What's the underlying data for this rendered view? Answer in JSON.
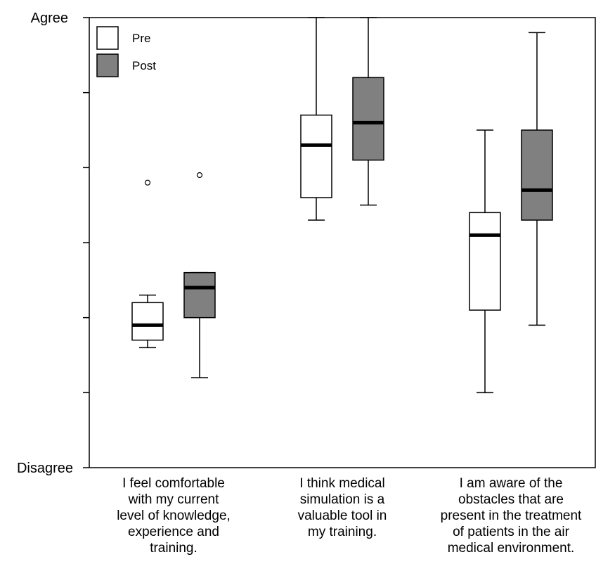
{
  "chart_data": {
    "type": "boxplot",
    "y_top_label": "Agree",
    "y_bottom_label": "Disagree",
    "ylim": [
      0,
      6
    ],
    "categories": [
      [
        "I feel comfortable",
        "with my current",
        "level of knowledge,",
        "experience and",
        "training."
      ],
      [
        "I think medical",
        "simulation is a",
        "valuable tool in",
        "my training."
      ],
      [
        "I am aware of the",
        "obstacles that are",
        "present in the treatment",
        "of patients in the air",
        "medical environment."
      ]
    ],
    "legend": {
      "placement": "top-left"
    },
    "series": [
      {
        "name": "Pre",
        "color": "#ffffff",
        "boxes": [
          {
            "whisker_low": 1.6,
            "q1": 1.7,
            "median": 1.9,
            "q3": 2.2,
            "whisker_high": 2.3,
            "outliers": [
              3.8
            ]
          },
          {
            "whisker_low": 3.3,
            "q1": 3.6,
            "median": 4.3,
            "q3": 4.7,
            "whisker_high": 6.0,
            "outliers": []
          },
          {
            "whisker_low": 1.0,
            "q1": 2.1,
            "median": 3.1,
            "q3": 3.4,
            "whisker_high": 4.5,
            "outliers": []
          }
        ]
      },
      {
        "name": "Post",
        "color": "#808080",
        "boxes": [
          {
            "whisker_low": 1.2,
            "q1": 2.0,
            "median": 2.4,
            "q3": 2.6,
            "whisker_high": 2.6,
            "outliers": [
              3.9
            ]
          },
          {
            "whisker_low": 3.5,
            "q1": 4.1,
            "median": 4.6,
            "q3": 5.2,
            "whisker_high": 6.0,
            "outliers": []
          },
          {
            "whisker_low": 1.9,
            "q1": 3.3,
            "median": 3.7,
            "q3": 4.5,
            "whisker_high": 5.8,
            "outliers": []
          }
        ]
      }
    ]
  }
}
